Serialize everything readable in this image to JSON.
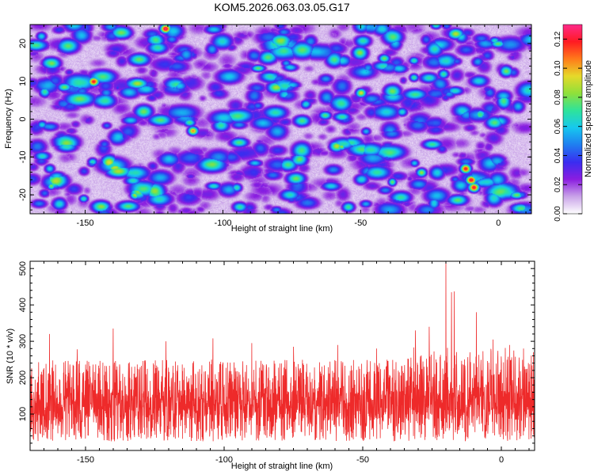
{
  "figure": {
    "title": "KOM5.2026.063.03.05.G17"
  },
  "colors": {
    "snr_line": "#ee2a2a",
    "axis": "#000000",
    "background": "#ffffff"
  },
  "chart_data": [
    {
      "type": "heatmap",
      "xlabel": "Height of straight line (km)",
      "ylabel": "Frequency (Hz)",
      "xlim": [
        -170,
        12
      ],
      "ylim": [
        -25,
        25
      ],
      "x_ticks": [
        -150,
        -100,
        -50,
        0
      ],
      "y_ticks": [
        -20,
        -10,
        0,
        10,
        20
      ],
      "colorbar": {
        "label": "Normalized spectral amplitude",
        "range": [
          0,
          0.13
        ],
        "ticks": [
          "0.00",
          "0.02",
          "0.04",
          "0.06",
          "0.08",
          "0.10",
          "0.12"
        ],
        "colormap": [
          "#ffffff",
          "#c9a3e8",
          "#8b1de0",
          "#3a2df0",
          "#1f7df0",
          "#16c8ef",
          "#2ee39b",
          "#8fe03a",
          "#e6d92a",
          "#ff7a1a",
          "#ff1a22",
          "#ff2a8a"
        ]
      },
      "noise_field": {
        "background_level": 0.012,
        "blob_count": 700,
        "peaks": [
          {
            "x": -121,
            "y": 24,
            "value": 0.12
          },
          {
            "x": -147,
            "y": 10,
            "value": 0.11
          },
          {
            "x": -111,
            "y": -3,
            "value": 0.1
          },
          {
            "x": -50,
            "y": 7,
            "value": 0.09
          },
          {
            "x": -12,
            "y": -13,
            "value": 0.12
          },
          {
            "x": -10,
            "y": -16,
            "value": 0.11
          },
          {
            "x": -9,
            "y": -18,
            "value": 0.12
          },
          {
            "x": -28,
            "y": -14,
            "value": 0.08
          },
          {
            "x": -20,
            "y": 12,
            "value": 0.07
          },
          {
            "x": -132,
            "y": -20,
            "value": 0.07
          },
          {
            "x": -95,
            "y": -18,
            "value": 0.06
          },
          {
            "x": -163,
            "y": -13,
            "value": 0.06
          },
          {
            "x": -166,
            "y": 22,
            "value": 0.06
          },
          {
            "x": -70,
            "y": 4,
            "value": 0.06
          },
          {
            "x": -35,
            "y": 2,
            "value": 0.06
          }
        ]
      }
    },
    {
      "type": "line",
      "xlabel": "Height of straight line (km)",
      "ylabel": "SNR (10 * v/v)",
      "xlim": [
        -170,
        12
      ],
      "ylim": [
        0,
        520
      ],
      "x_ticks": [
        -150,
        -100,
        -50,
        0
      ],
      "y_ticks": [
        100,
        200,
        300,
        400,
        500
      ],
      "series": [
        {
          "baseline_min": 25,
          "baseline_typical": 140,
          "typical_max": 250,
          "spikes": [
            {
              "x": -163,
              "y": 320
            },
            {
              "x": -153,
              "y": 278
            },
            {
              "x": -140,
              "y": 335
            },
            {
              "x": -121,
              "y": 300
            },
            {
              "x": -104,
              "y": 308
            },
            {
              "x": -90,
              "y": 295
            },
            {
              "x": -75,
              "y": 285
            },
            {
              "x": -59,
              "y": 290
            },
            {
              "x": -45,
              "y": 280
            },
            {
              "x": -31,
              "y": 330
            },
            {
              "x": -26,
              "y": 340
            },
            {
              "x": -20,
              "y": 520
            },
            {
              "x": -18,
              "y": 435
            },
            {
              "x": -17,
              "y": 437
            },
            {
              "x": -9,
              "y": 380
            },
            {
              "x": -3,
              "y": 305
            },
            {
              "x": 3,
              "y": 290
            },
            {
              "x": 8,
              "y": 280
            }
          ]
        }
      ]
    }
  ]
}
